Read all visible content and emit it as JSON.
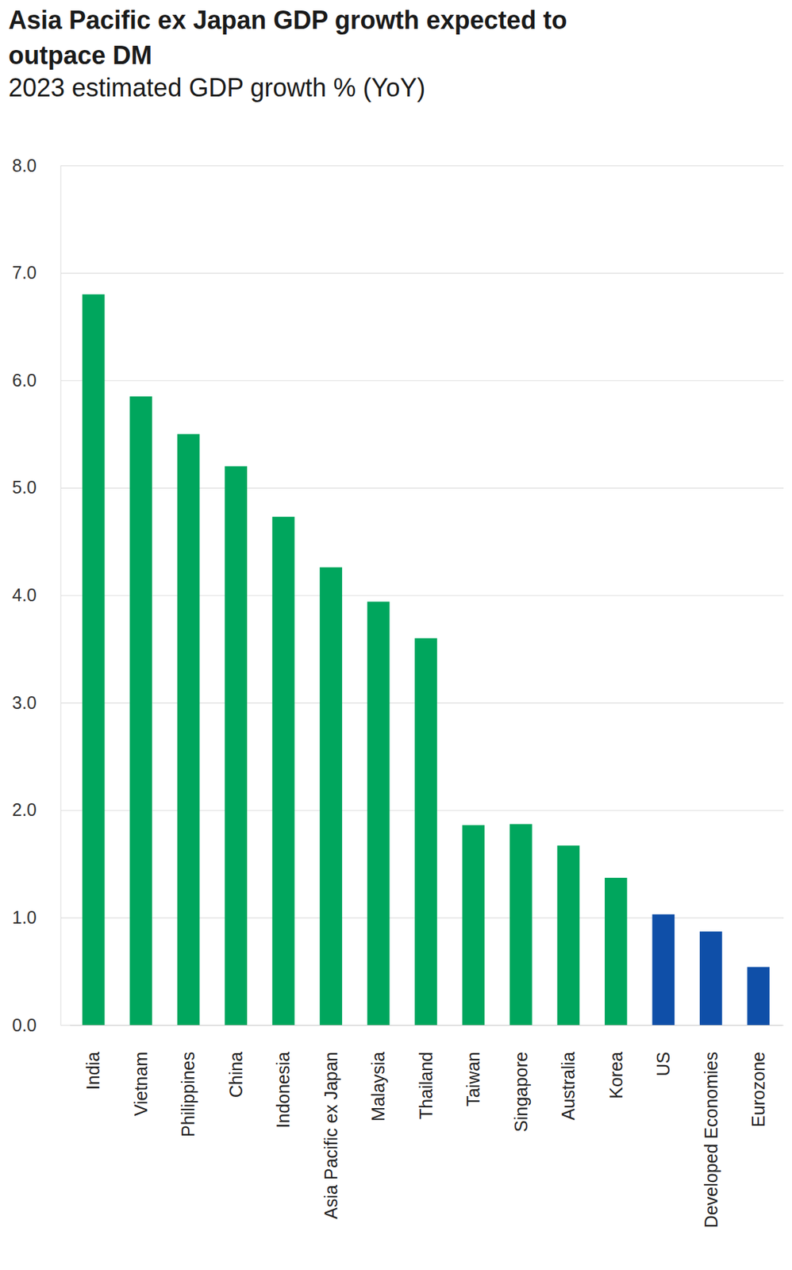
{
  "chart_data": {
    "type": "bar",
    "title": "Asia Pacific ex Japan GDP growth expected to outpace DM",
    "subtitle": "2023 estimated GDP growth % (YoY)",
    "categories": [
      "India",
      "Vietnam",
      "Philippines",
      "China",
      "Indonesia",
      "Asia Pacific ex Japan",
      "Malaysia",
      "Thailand",
      "Taiwan",
      "Singapore",
      "Australia",
      "Korea",
      "US",
      "Developed Economies",
      "Eurozone"
    ],
    "values": [
      6.8,
      5.85,
      5.5,
      5.2,
      4.73,
      4.26,
      3.94,
      3.6,
      1.86,
      1.87,
      1.67,
      1.37,
      1.03,
      0.87,
      0.54
    ],
    "colors": [
      "#00a65d",
      "#00a65d",
      "#00a65d",
      "#00a65d",
      "#00a65d",
      "#00a65d",
      "#00a65d",
      "#00a65d",
      "#00a65d",
      "#00a65d",
      "#00a65d",
      "#00a65d",
      "#0f4fa8",
      "#0f4fa8",
      "#0f4fa8"
    ],
    "ylim": [
      0,
      8
    ],
    "yticks": [
      {
        "value": 0,
        "label": "0.0"
      },
      {
        "value": 1,
        "label": "1.0"
      },
      {
        "value": 2,
        "label": "2.0"
      },
      {
        "value": 3,
        "label": "3.0"
      },
      {
        "value": 4,
        "label": "4.0"
      },
      {
        "value": 5,
        "label": "5.0"
      },
      {
        "value": 6,
        "label": "6.0"
      },
      {
        "value": 7,
        "label": "7.0"
      },
      {
        "value": 8,
        "label": "8.0"
      }
    ],
    "grid": true
  }
}
